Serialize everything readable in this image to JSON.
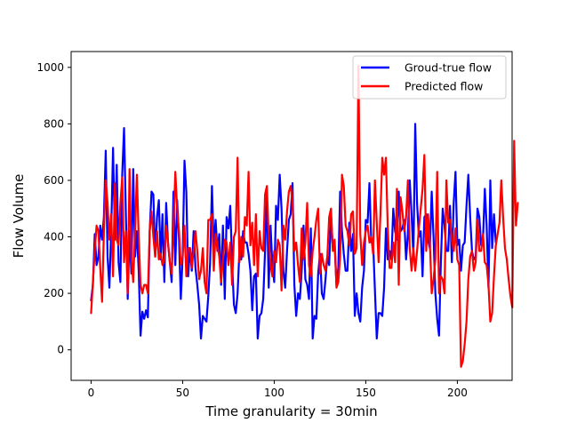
{
  "chart_data": {
    "type": "line",
    "xlabel": "Time granularity = 30min",
    "ylabel": "Flow Volume",
    "xlim": [
      -10.9,
      229.9
    ],
    "ylim": [
      -108,
      1056
    ],
    "xticks": [
      0,
      50,
      100,
      150,
      200
    ],
    "yticks": [
      0,
      200,
      400,
      600,
      800,
      1000
    ],
    "grid": false,
    "legend_position": "top-right",
    "colors": {
      "ground_truth": "#0000ff",
      "predicted": "#ff0000"
    },
    "series": [
      {
        "name": "Groud-true flow",
        "color": "#0000ff",
        "values": [
          175,
          230,
          410,
          300,
          330,
          440,
          390,
          470,
          705,
          330,
          220,
          430,
          715,
          390,
          655,
          310,
          240,
          620,
          785,
          480,
          180,
          420,
          270,
          640,
          330,
          420,
          280,
          50,
          135,
          110,
          140,
          115,
          420,
          560,
          550,
          330,
          470,
          530,
          320,
          480,
          240,
          520,
          380,
          310,
          240,
          560,
          300,
          530,
          390,
          180,
          330,
          670,
          560,
          260,
          360,
          280,
          420,
          290,
          230,
          160,
          40,
          120,
          110,
          100,
          190,
          310,
          580,
          360,
          460,
          350,
          410,
          230,
          440,
          180,
          470,
          430,
          510,
          310,
          160,
          130,
          200,
          350,
          320,
          420,
          380,
          380,
          340,
          280,
          140,
          260,
          270,
          40,
          120,
          130,
          180,
          350,
          560,
          220,
          440,
          300,
          240,
          510,
          460,
          620,
          500,
          280,
          220,
          350,
          460,
          480,
          590,
          230,
          120,
          200,
          180,
          280,
          440,
          250,
          230,
          180,
          430,
          40,
          120,
          110,
          270,
          340,
          200,
          180,
          250,
          330,
          300,
          480,
          360,
          370,
          230,
          290,
          560,
          420,
          340,
          280,
          280,
          450,
          350,
          410,
          120,
          200,
          130,
          100,
          220,
          280,
          460,
          450,
          590,
          380,
          380,
          210,
          40,
          130,
          130,
          120,
          220,
          430,
          320,
          350,
          320,
          500,
          420,
          390,
          560,
          420,
          430,
          460,
          320,
          410,
          600,
          480,
          330,
          800,
          520,
          400,
          420,
          260,
          470,
          480,
          390,
          360,
          560,
          400,
          200,
          110,
          50,
          310,
          500,
          440,
          350,
          350,
          510,
          310,
          520,
          630,
          370,
          390,
          280,
          370,
          380,
          510,
          620,
          470,
          350,
          320,
          330,
          500,
          470,
          370,
          390,
          570,
          440,
          220,
          600,
          360,
          480,
          380
        ]
      },
      {
        "name": "Predicted flow",
        "color": "#ff0000",
        "values": [
          130,
          240,
          350,
          440,
          420,
          290,
          170,
          420,
          600,
          520,
          390,
          480,
          260,
          590,
          390,
          370,
          520,
          610,
          310,
          420,
          200,
          640,
          330,
          240,
          420,
          620,
          400,
          230,
          200,
          230,
          230,
          200,
          420,
          490,
          400,
          330,
          420,
          320,
          340,
          300,
          320,
          440,
          380,
          310,
          270,
          430,
          630,
          500,
          420,
          300,
          330,
          440,
          260,
          360,
          360,
          290,
          350,
          420,
          350,
          250,
          280,
          360,
          240,
          200,
          460,
          460,
          480,
          280,
          410,
          370,
          330,
          240,
          320,
          390,
          380,
          300,
          380,
          230,
          400,
          420,
          680,
          310,
          400,
          330,
          470,
          440,
          630,
          370,
          450,
          300,
          480,
          260,
          420,
          360,
          350,
          550,
          580,
          400,
          300,
          260,
          350,
          310,
          390,
          370,
          210,
          440,
          390,
          490,
          560,
          580,
          520,
          350,
          380,
          300,
          240,
          430,
          320,
          380,
          520,
          300,
          260,
          350,
          400,
          460,
          500,
          270,
          340,
          300,
          280,
          330,
          470,
          500,
          350,
          390,
          220,
          240,
          330,
          620,
          580,
          440,
          420,
          370,
          480,
          490,
          340,
          360,
          1005,
          410,
          300,
          380,
          420,
          440,
          380,
          400,
          340,
          600,
          450,
          310,
          480,
          680,
          620,
          680,
          430,
          290,
          290,
          380,
          310,
          570,
          230,
          540,
          490,
          420,
          470,
          600,
          360,
          280,
          360,
          280,
          350,
          430,
          500,
          570,
          690,
          350,
          480,
          380,
          200,
          250,
          320,
          630,
          200,
          260,
          250,
          200,
          600,
          450,
          460,
          390,
          350,
          430,
          320,
          300,
          -60,
          -40,
          20,
          100,
          250,
          330,
          350,
          280,
          310,
          460,
          350,
          350,
          410,
          310,
          300,
          230,
          100,
          130,
          260,
          370,
          410,
          450,
          600,
          470,
          360,
          320,
          250,
          190,
          150,
          740,
          440,
          520
        ]
      }
    ]
  }
}
